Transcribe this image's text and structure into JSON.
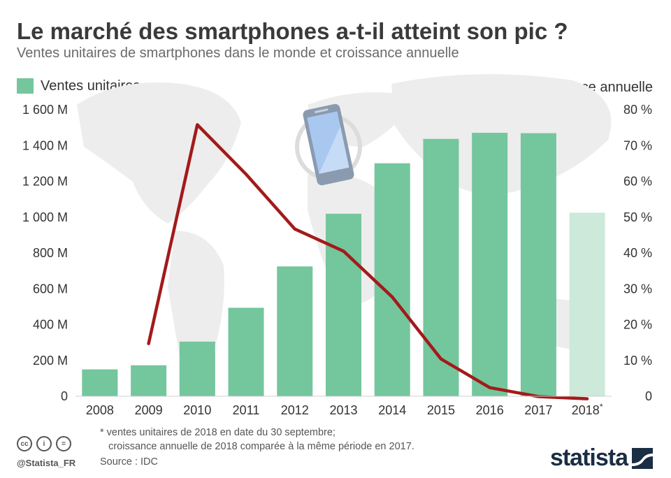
{
  "title": "Le marché des smartphones a-t-il atteint son pic ?",
  "subtitle": "Ventes unitaires de smartphones dans le monde et croissance annuelle",
  "legend": {
    "bars": "Ventes unitaires",
    "line": "Croissance annuelle"
  },
  "colors": {
    "bar": "#74c69d",
    "bar_estimate": "#cce9d9",
    "line": "#a31a1a",
    "map": "#ededed"
  },
  "chart_data": {
    "type": "bar",
    "categories": [
      "2008",
      "2009",
      "2010",
      "2011",
      "2012",
      "2013",
      "2014",
      "2015",
      "2016",
      "2017",
      "2018*"
    ],
    "series": [
      {
        "name": "Ventes unitaires",
        "axis": "left",
        "values": [
          150,
          173,
          305,
          494,
          725,
          1019,
          1301,
          1437,
          1471,
          1469,
          1025
        ]
      },
      {
        "name": "Croissance annuelle",
        "axis": "right",
        "type": "line",
        "values": [
          null,
          14.7,
          75.8,
          62.0,
          46.7,
          40.5,
          27.7,
          10.4,
          2.4,
          -0.1,
          -0.7
        ]
      }
    ],
    "ylim_left": [
      0,
      1600
    ],
    "ylim_right": [
      0,
      80
    ],
    "yticks_left": [
      "0",
      "200 M",
      "400 M",
      "600 M",
      "800 M",
      "1 000 M",
      "1 200 M",
      "1 400 M",
      "1 600 M"
    ],
    "yticks_right": [
      "0",
      "10 %",
      "20 %",
      "30 %",
      "40 %",
      "50 %",
      "60 %",
      "70 %",
      "80 %"
    ],
    "grid": false,
    "legend_position": "top"
  },
  "footnote": "* ventes unitaires de 2018 en date du 30 septembre;\n   croissance annuelle de 2018 comparée à la même période en 2017.",
  "source": "Source : IDC",
  "handle": "@Statista_FR",
  "brand": "statista",
  "license_icons": [
    "cc-icon",
    "by-icon",
    "nd-icon"
  ],
  "license_icon_labels": [
    "cc",
    "i",
    "="
  ]
}
